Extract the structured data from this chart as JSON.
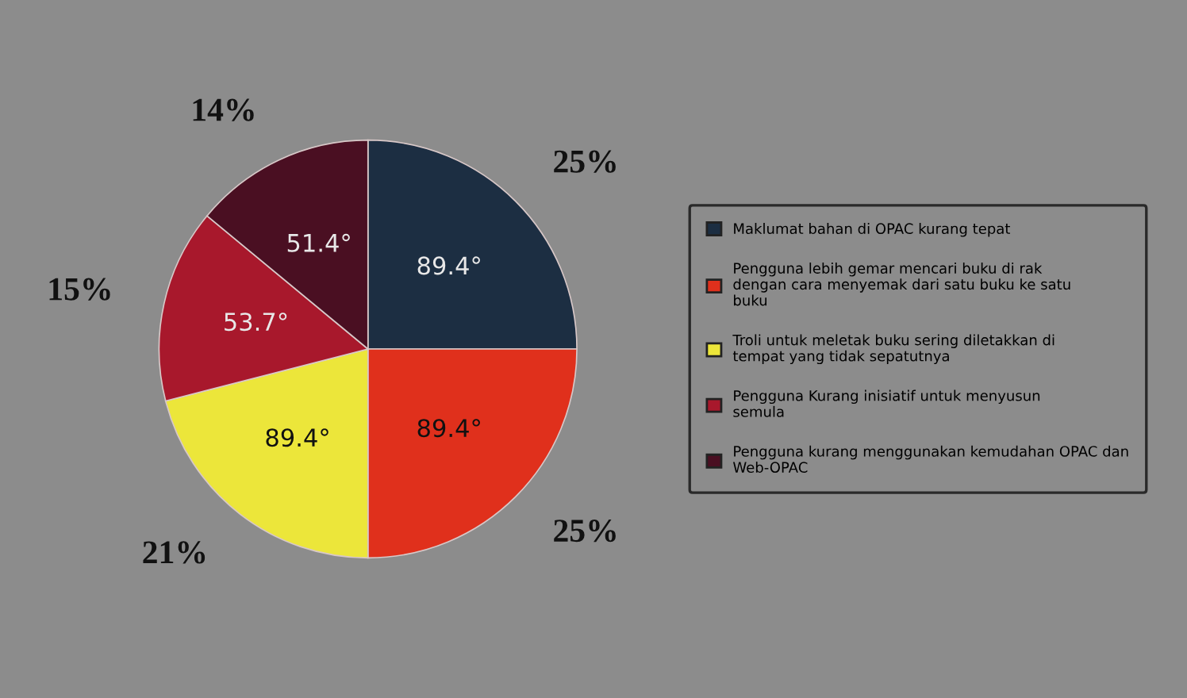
{
  "chart_data": {
    "type": "pie",
    "categories": [
      "Maklumat bahan di OPAC kurang tepat",
      "Pengguna lebih gemar mencari buku di rak dengan cara menyemak dari satu buku ke satu buku",
      "Troli untuk meletak buku sering diletakkan di tempat yang tidak sepatutnya",
      "Pengguna Kurang inisiatif untuk menyusun semula",
      "Pengguna kurang menggunakan kemudahan OPAC dan Web-OPAC"
    ],
    "values": [
      25,
      25,
      21,
      15,
      14
    ],
    "colors": [
      "#1c2e42",
      "#e0301c",
      "#ece63a",
      "#a8182c",
      "#4a0f22"
    ],
    "value_labels": [
      "25%",
      "25%",
      "21%",
      "15%",
      "14%"
    ],
    "annotations": [
      "89.4°",
      "89.4°",
      "89.4°",
      "53.7°",
      "51.4°"
    ],
    "legend": "right"
  }
}
